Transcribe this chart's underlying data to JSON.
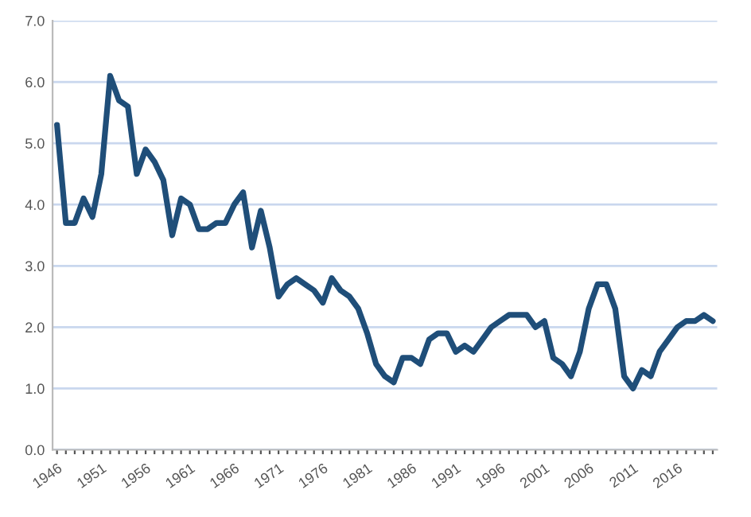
{
  "chart_data": {
    "type": "line",
    "categories": [
      "1946",
      null,
      null,
      null,
      null,
      "1951",
      null,
      null,
      null,
      null,
      "1956",
      null,
      null,
      null,
      null,
      "1961",
      null,
      null,
      null,
      null,
      "1966",
      null,
      null,
      null,
      null,
      "1971",
      null,
      null,
      null,
      null,
      "1976",
      null,
      null,
      null,
      null,
      "1981",
      null,
      null,
      null,
      null,
      "1986",
      null,
      null,
      null,
      null,
      "1991",
      null,
      null,
      null,
      null,
      "1996",
      null,
      null,
      null,
      null,
      "2001",
      null,
      null,
      null,
      null,
      "2006",
      null,
      null,
      null,
      null,
      "2011",
      null,
      null,
      null,
      null,
      "2016",
      null,
      null,
      null,
      null
    ],
    "series": [
      {
        "color": "#1f4e79",
        "values": [
          5.3,
          3.7,
          3.7,
          4.1,
          3.8,
          4.5,
          6.1,
          5.7,
          5.6,
          4.5,
          4.9,
          4.7,
          4.4,
          3.5,
          4.1,
          4.0,
          3.6,
          3.6,
          3.7,
          3.7,
          4.0,
          4.2,
          3.3,
          3.9,
          3.3,
          2.5,
          2.7,
          2.8,
          2.7,
          2.6,
          2.4,
          2.8,
          2.6,
          2.5,
          2.3,
          1.9,
          1.4,
          1.2,
          1.1,
          1.5,
          1.5,
          1.4,
          1.8,
          1.9,
          1.9,
          1.6,
          1.7,
          1.6,
          1.8,
          2.0,
          2.1,
          2.2,
          2.2,
          2.2,
          2.0,
          2.1,
          1.5,
          1.4,
          1.2,
          1.6,
          2.3,
          2.7,
          2.7,
          2.3,
          1.2,
          1.0,
          1.3,
          1.2,
          1.6,
          1.8,
          2.0,
          2.1,
          2.1,
          2.2,
          2.1
        ]
      }
    ],
    "ylim": [
      0,
      7
    ],
    "yticks": [
      {
        "value": 0,
        "label": "0.0"
      },
      {
        "value": 1,
        "label": "1.0"
      },
      {
        "value": 2,
        "label": "2.0"
      },
      {
        "value": 3,
        "label": "3.0"
      },
      {
        "value": 4,
        "label": "4.0"
      },
      {
        "value": 5,
        "label": "5.0"
      },
      {
        "value": 6,
        "label": "6.0"
      },
      {
        "value": 7,
        "label": "7.0"
      }
    ],
    "grid": "y",
    "marker": "none",
    "line_style": "solid"
  }
}
